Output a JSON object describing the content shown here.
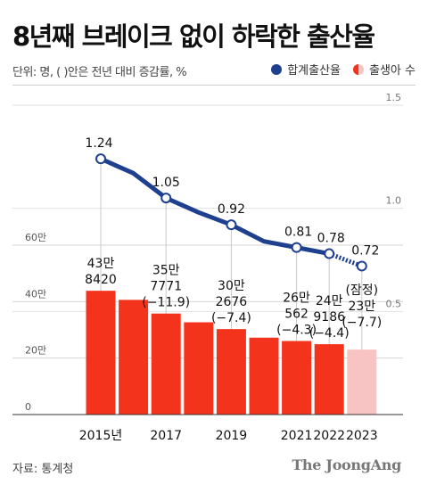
{
  "title": "8년째 브레이크 없이 하락한 출산율",
  "subtitle": "단위: 명, ( )안은 전년 대비 증감률, %",
  "legend": {
    "line_label": "합계출산율",
    "bar_label": "출생아 수"
  },
  "source": "자료: 통계청",
  "brand": "The JoongAng",
  "colors": {
    "bar": "#f4331d",
    "bar_provisional": "#f8c3c3",
    "line": "#1f3f8f"
  },
  "chart_data": {
    "type": "bar",
    "x": [
      2015,
      2016,
      2017,
      2018,
      2019,
      2020,
      2021,
      2022,
      2023
    ],
    "x_tick_labels": [
      "2015년",
      "2017",
      "2019",
      "2021",
      "2022",
      "2023"
    ],
    "x_tick_positions": [
      2015,
      2017,
      2019,
      2021,
      2022,
      2023
    ],
    "bar_series": {
      "name": "출생아 수",
      "values": [
        438420,
        406243,
        357771,
        326822,
        302676,
        272337,
        260562,
        249186,
        230000
      ],
      "provisional_index": 8
    },
    "line_series": {
      "name": "합계출산율",
      "values": [
        1.24,
        1.17,
        1.05,
        0.98,
        0.92,
        0.84,
        0.81,
        0.78,
        0.72
      ],
      "dashed_last_segment": true
    },
    "left_axis": {
      "ylim": [
        0,
        700000
      ],
      "ticks": [
        0,
        200000,
        400000,
        600000
      ],
      "tick_labels": [
        "0",
        "20만",
        "40만",
        "60만"
      ]
    },
    "right_axis": {
      "ylim": [
        0,
        1.5
      ],
      "ticks": [
        0.5,
        1.0,
        1.5
      ],
      "tick_labels": [
        "0.5",
        "1.0",
        "1.5"
      ]
    },
    "line_labels": [
      {
        "x": 2015,
        "text": "1.24"
      },
      {
        "x": 2017,
        "text": "1.05"
      },
      {
        "x": 2019,
        "text": "0.92"
      },
      {
        "x": 2021,
        "text": "0.81"
      },
      {
        "x": 2022,
        "text": "0.78"
      },
      {
        "x": 2023,
        "text": "0.72"
      }
    ],
    "bar_labels": [
      {
        "x": 2015,
        "lines": [
          "43만",
          "8420"
        ]
      },
      {
        "x": 2017,
        "lines": [
          "35만",
          "7771",
          "(−11.9)"
        ]
      },
      {
        "x": 2019,
        "lines": [
          "30만",
          "2676",
          "(−7.4)"
        ]
      },
      {
        "x": 2021,
        "lines": [
          "26만",
          "562",
          "(−4.3)"
        ]
      },
      {
        "x": 2022,
        "lines": [
          "24만",
          "9186",
          "(−4.4)"
        ]
      },
      {
        "x": 2023,
        "lines": [
          "(잠정)",
          "23만",
          "(−7.7)"
        ]
      }
    ],
    "grid": true
  }
}
